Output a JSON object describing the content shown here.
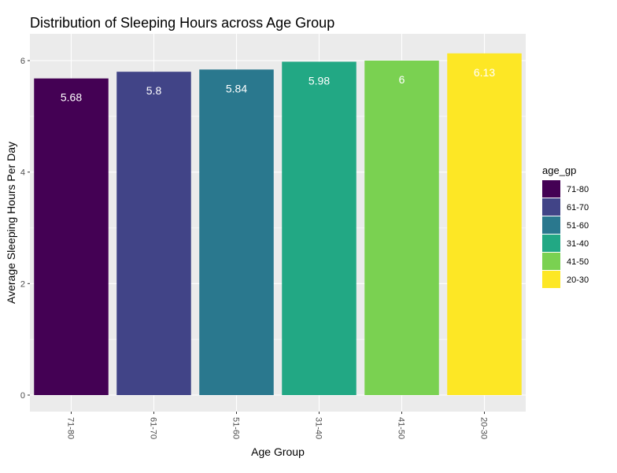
{
  "chart_data": {
    "type": "bar",
    "title": "Distribution of Sleeping Hours across Age Group",
    "xlabel": "Age Group",
    "ylabel": "Average Sleeping Hours Per Day",
    "categories": [
      "71-80",
      "61-70",
      "51-60",
      "31-40",
      "41-50",
      "20-30"
    ],
    "values": [
      5.68,
      5.8,
      5.84,
      5.98,
      6,
      6.13
    ],
    "value_labels": [
      "5.68",
      "5.8",
      "5.84",
      "5.98",
      "6",
      "6.13"
    ],
    "colors": [
      "#440154",
      "#414487",
      "#2A788E",
      "#22A884",
      "#7AD151",
      "#FDE725"
    ],
    "ylim": [
      0,
      6.45
    ],
    "yticks": [
      0,
      2,
      4,
      6
    ],
    "grid": true,
    "legend": {
      "title": "age_gp",
      "position": "right",
      "items": [
        "71-80",
        "61-70",
        "51-60",
        "31-40",
        "41-50",
        "20-30"
      ]
    },
    "panel_background": "#EBEBEB",
    "grid_color": "#FFFFFF"
  }
}
